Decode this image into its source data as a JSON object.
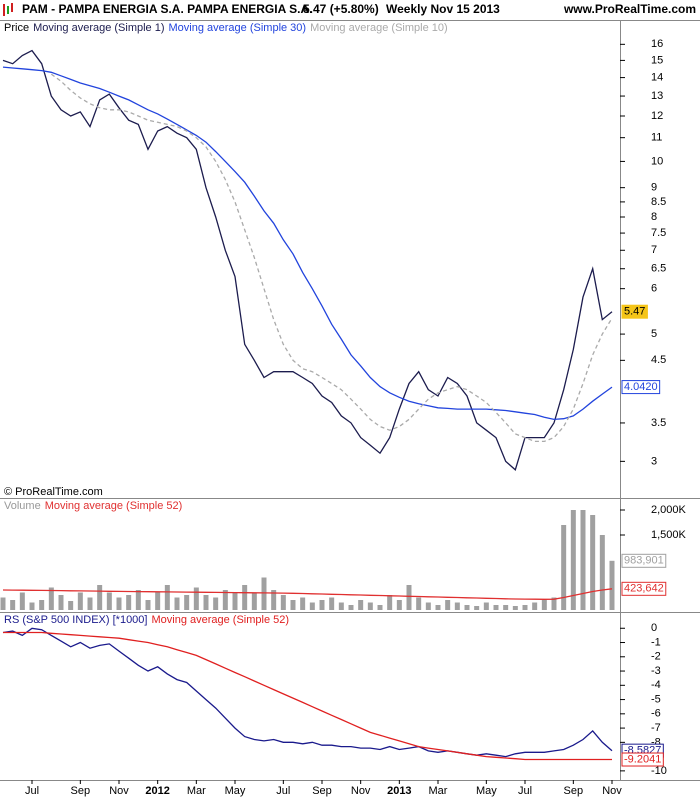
{
  "chart_data": [
    {
      "type": "line",
      "title": "PAM - PAMPA ENERGIA S.A. PAMPA ENERGIA S.A.",
      "change": "5.47 (+5.80%)",
      "period": "Weekly  Nov 15 2013",
      "source": "www.ProRealTime.com",
      "copyright": "© ProRealTime.com",
      "label": "Price",
      "label_color": "#000000",
      "log_scale": true,
      "ylim": [
        2.6,
        17.5
      ],
      "yticks": [
        3,
        3.5,
        4.5,
        5,
        6,
        6.5,
        7,
        7.5,
        8,
        8.5,
        9,
        10,
        11,
        12,
        13,
        14,
        15,
        16
      ],
      "series": [
        {
          "name": "Moving average (Simple 1)",
          "color": "#1c1c4e",
          "tag": true,
          "tag_fill": "#f5c518",
          "values": [
            15.0,
            14.8,
            15.3,
            15.6,
            14.8,
            13.0,
            12.3,
            12.0,
            12.2,
            11.5,
            12.8,
            13.1,
            12.4,
            11.8,
            11.6,
            10.5,
            11.3,
            11.5,
            11.2,
            11.0,
            10.5,
            9.0,
            8.0,
            7.0,
            6.3,
            4.8,
            4.5,
            4.2,
            4.3,
            4.3,
            4.3,
            4.2,
            4.1,
            3.9,
            3.8,
            3.6,
            3.5,
            3.3,
            3.2,
            3.1,
            3.3,
            3.7,
            4.1,
            4.3,
            4.0,
            3.9,
            4.2,
            4.1,
            3.9,
            3.5,
            3.4,
            3.3,
            3.0,
            2.9,
            3.3,
            3.3,
            3.3,
            3.5,
            4.0,
            4.7,
            5.8,
            6.5,
            5.3,
            5.47
          ]
        },
        {
          "name": "Moving average (Simple 30)",
          "color": "#2244dd",
          "tag": true,
          "values": [
            14.6,
            14.55,
            14.5,
            14.45,
            14.4,
            14.3,
            14.1,
            13.9,
            13.7,
            13.55,
            13.4,
            13.2,
            13.0,
            12.8,
            12.55,
            12.3,
            12.1,
            11.85,
            11.6,
            11.35,
            11.1,
            10.8,
            10.4,
            10.0,
            9.6,
            9.2,
            8.7,
            8.2,
            7.8,
            7.3,
            6.9,
            6.4,
            6.0,
            5.6,
            5.2,
            4.9,
            4.6,
            4.4,
            4.2,
            4.05,
            3.95,
            3.88,
            3.82,
            3.78,
            3.75,
            3.72,
            3.71,
            3.7,
            3.7,
            3.7,
            3.7,
            3.69,
            3.68,
            3.66,
            3.64,
            3.62,
            3.58,
            3.55,
            3.56,
            3.6,
            3.7,
            3.82,
            3.93,
            4.042
          ],
          "value_labels": [
            null,
            null,
            null,
            null,
            null,
            null,
            null,
            null,
            null,
            null,
            null,
            null,
            null,
            null,
            null,
            null,
            null,
            null,
            null,
            null,
            null,
            null,
            null,
            null,
            null,
            null,
            null,
            null,
            null,
            null,
            null,
            null,
            null,
            null,
            null,
            null,
            null,
            null,
            null,
            null,
            null,
            null,
            null,
            null,
            null,
            null,
            null,
            null,
            null,
            null,
            null,
            null,
            null,
            null,
            null,
            null,
            null,
            null,
            null,
            null,
            null,
            null,
            null,
            "4.0420"
          ]
        },
        {
          "name": "Moving average (Simple 10)",
          "color": "#aaaaaa",
          "dashed": true,
          "values": [
            null,
            null,
            null,
            null,
            null,
            14.2,
            13.8,
            13.3,
            12.9,
            12.6,
            12.4,
            12.3,
            12.3,
            12.2,
            12.0,
            11.8,
            11.7,
            11.6,
            11.5,
            11.3,
            11.0,
            10.6,
            10.0,
            9.3,
            8.5,
            7.6,
            6.8,
            6.0,
            5.3,
            4.8,
            4.5,
            4.35,
            4.3,
            4.2,
            4.1,
            4.0,
            3.85,
            3.7,
            3.55,
            3.45,
            3.4,
            3.45,
            3.55,
            3.7,
            3.85,
            3.95,
            4.0,
            4.05,
            4.0,
            3.9,
            3.8,
            3.65,
            3.5,
            3.35,
            3.3,
            3.25,
            3.25,
            3.3,
            3.45,
            3.7,
            4.1,
            4.6,
            5.0,
            5.33
          ]
        }
      ]
    },
    {
      "type": "bar",
      "label": "Volume",
      "label_color": "#999999",
      "ylim": [
        0,
        2200000
      ],
      "yticks": [
        {
          "value": 1500000,
          "label": "1,500K"
        },
        {
          "value": 2000000,
          "label": "2,000K"
        }
      ],
      "series": [
        {
          "name": "Volume",
          "color": "#a0a0a0",
          "show_name": false,
          "tag": true,
          "values": [
            250000,
            200000,
            350000,
            150000,
            200000,
            450000,
            300000,
            180000,
            350000,
            250000,
            500000,
            350000,
            250000,
            300000,
            400000,
            200000,
            350000,
            500000,
            250000,
            300000,
            450000,
            300000,
            250000,
            400000,
            350000,
            500000,
            350000,
            650000,
            400000,
            300000,
            200000,
            250000,
            150000,
            200000,
            250000,
            150000,
            100000,
            200000,
            150000,
            100000,
            300000,
            200000,
            500000,
            250000,
            150000,
            100000,
            200000,
            150000,
            100000,
            80000,
            150000,
            100000,
            100000,
            80000,
            100000,
            150000,
            200000,
            250000,
            1700000,
            2000000,
            2000000,
            1900000,
            1500000,
            983901
          ],
          "value_labels": [
            null,
            null,
            null,
            null,
            null,
            null,
            null,
            null,
            null,
            null,
            null,
            null,
            null,
            null,
            null,
            null,
            null,
            null,
            null,
            null,
            null,
            null,
            null,
            null,
            null,
            null,
            null,
            null,
            null,
            null,
            null,
            null,
            null,
            null,
            null,
            null,
            null,
            null,
            null,
            null,
            null,
            null,
            null,
            null,
            null,
            null,
            null,
            null,
            null,
            null,
            null,
            null,
            null,
            null,
            null,
            null,
            null,
            null,
            null,
            null,
            null,
            null,
            null,
            "983,901"
          ]
        },
        {
          "name": "Moving average (Simple 52)",
          "color": "#e03030",
          "kind": "line",
          "tag": true,
          "values": [
            400000,
            398000,
            396000,
            394000,
            392000,
            390000,
            388000,
            385000,
            382000,
            380000,
            378000,
            375000,
            372000,
            370000,
            368000,
            366000,
            364000,
            362000,
            360000,
            358000,
            356000,
            354000,
            352000,
            350000,
            348000,
            346000,
            344000,
            342000,
            340000,
            338000,
            335000,
            330000,
            325000,
            320000,
            315000,
            310000,
            305000,
            300000,
            295000,
            290000,
            285000,
            280000,
            275000,
            270000,
            265000,
            260000,
            255000,
            250000,
            245000,
            240000,
            235000,
            230000,
            225000,
            220000,
            218000,
            216000,
            215000,
            216000,
            250000,
            290000,
            330000,
            370000,
            400000,
            423642
          ],
          "value_labels": [
            null,
            null,
            null,
            null,
            null,
            null,
            null,
            null,
            null,
            null,
            null,
            null,
            null,
            null,
            null,
            null,
            null,
            null,
            null,
            null,
            null,
            null,
            null,
            null,
            null,
            null,
            null,
            null,
            null,
            null,
            null,
            null,
            null,
            null,
            null,
            null,
            null,
            null,
            null,
            null,
            null,
            null,
            null,
            null,
            null,
            null,
            null,
            null,
            null,
            null,
            null,
            null,
            null,
            null,
            null,
            null,
            null,
            null,
            null,
            null,
            null,
            null,
            null,
            "423,642"
          ]
        }
      ]
    },
    {
      "type": "line",
      "ylim": [
        -10.5,
        1.0
      ],
      "yticks": [
        0,
        -1,
        -2,
        -3,
        -4,
        -5,
        -6,
        -7,
        -8,
        -10
      ],
      "categories": [
        null,
        null,
        null,
        "Jul",
        null,
        null,
        null,
        null,
        "Sep",
        null,
        null,
        null,
        "Nov",
        null,
        null,
        null,
        "2012",
        null,
        null,
        null,
        "Mar",
        null,
        null,
        null,
        "May",
        null,
        null,
        null,
        null,
        "Jul",
        null,
        null,
        null,
        "Sep",
        null,
        null,
        null,
        "Nov",
        null,
        null,
        null,
        "2013",
        null,
        null,
        null,
        "Mar",
        null,
        null,
        null,
        null,
        "May",
        null,
        null,
        null,
        "Jul",
        null,
        null,
        null,
        null,
        "Sep",
        null,
        null,
        null,
        "Nov"
      ],
      "series": [
        {
          "name": "RS (S&P 500 INDEX) [*1000]",
          "color": "#1a1a8c",
          "tag": true,
          "values": [
            -0.3,
            -0.2,
            -0.5,
            0.0,
            -0.1,
            -0.5,
            -0.9,
            -1.3,
            -1.0,
            -1.4,
            -1.2,
            -1.1,
            -1.6,
            -2.1,
            -2.6,
            -3.0,
            -2.7,
            -3.2,
            -3.6,
            -3.8,
            -4.4,
            -5.0,
            -5.6,
            -6.3,
            -7.0,
            -7.6,
            -7.8,
            -7.9,
            -7.8,
            -8.0,
            -8.0,
            -8.1,
            -8.0,
            -8.2,
            -8.2,
            -8.3,
            -8.3,
            -8.4,
            -8.4,
            -8.5,
            -8.3,
            -8.5,
            -8.4,
            -8.3,
            -8.6,
            -8.7,
            -8.6,
            -8.7,
            -8.8,
            -8.9,
            -8.8,
            -8.9,
            -9.0,
            -8.8,
            -8.7,
            -8.7,
            -8.7,
            -8.6,
            -8.5,
            -8.2,
            -7.8,
            -7.2,
            -8.0,
            -8.5827
          ]
        },
        {
          "name": "Moving average (Simple 52)",
          "color": "#e02020",
          "tag": true,
          "values": [
            -0.3,
            -0.3,
            -0.3,
            -0.3,
            -0.3,
            -0.35,
            -0.4,
            -0.45,
            -0.5,
            -0.55,
            -0.6,
            -0.65,
            -0.7,
            -0.8,
            -0.9,
            -1.0,
            -1.15,
            -1.3,
            -1.5,
            -1.7,
            -1.9,
            -2.2,
            -2.5,
            -2.8,
            -3.1,
            -3.4,
            -3.7,
            -4.0,
            -4.3,
            -4.6,
            -4.9,
            -5.2,
            -5.5,
            -5.8,
            -6.1,
            -6.4,
            -6.7,
            -7.0,
            -7.3,
            -7.5,
            -7.7,
            -7.9,
            -8.1,
            -8.3,
            -8.4,
            -8.5,
            -8.6,
            -8.7,
            -8.8,
            -8.9,
            -9.0,
            -9.05,
            -9.1,
            -9.15,
            -9.2,
            -9.2,
            -9.2,
            -9.2,
            -9.2,
            -9.2,
            -9.2,
            -9.2,
            -9.2,
            -9.2041
          ]
        }
      ]
    }
  ]
}
